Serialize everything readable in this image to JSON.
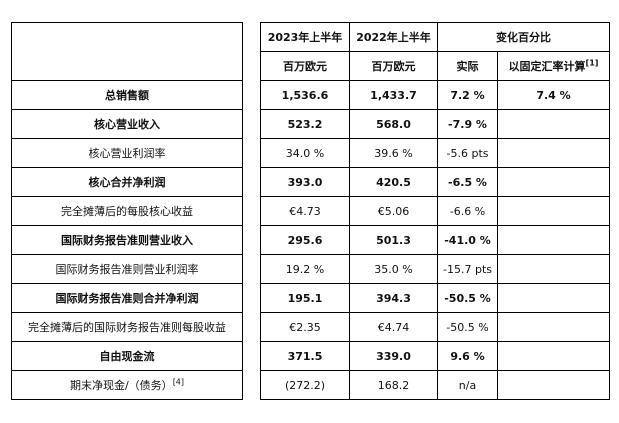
{
  "header": {
    "col1": "2023年上半年",
    "col2": "2022年上半年",
    "change": "变化百分比",
    "unit1": "百万欧元",
    "unit2": "百万欧元",
    "actual": "实际",
    "constant": "以固定汇率计算",
    "constant_note": "[1]"
  },
  "rows": [
    {
      "label": "总销售额",
      "note": "",
      "v2023": "1,536.6",
      "v2022": "1,433.7",
      "actual": "7.2 %",
      "constant": "7.4 %",
      "bold": true
    },
    {
      "label": "核心营业收入",
      "note": "",
      "v2023": "523.2",
      "v2022": "568.0",
      "actual": "-7.9 %",
      "constant": "",
      "bold": true
    },
    {
      "label": "核心营业利润率",
      "note": "",
      "v2023": "34.0 %",
      "v2022": "39.6 %",
      "actual": "-5.6 pts",
      "constant": "",
      "bold": false
    },
    {
      "label": "核心合并净利润",
      "note": "",
      "v2023": "393.0",
      "v2022": "420.5",
      "actual": "-6.5 %",
      "constant": "",
      "bold": true
    },
    {
      "label": "完全摊薄后的每股核心收益",
      "note": "",
      "v2023": "€4.73",
      "v2022": "€5.06",
      "actual": "-6.6 %",
      "constant": "",
      "bold": false
    },
    {
      "label": "国际财务报告准则营业收入",
      "note": "",
      "v2023": "295.6",
      "v2022": "501.3",
      "actual": "-41.0 %",
      "constant": "",
      "bold": true
    },
    {
      "label": "国际财务报告准则营业利润率",
      "note": "",
      "v2023": "19.2 %",
      "v2022": "35.0 %",
      "actual": "-15.7 pts",
      "constant": "",
      "bold": false
    },
    {
      "label": "国际财务报告准则合并净利润",
      "note": "",
      "v2023": "195.1",
      "v2022": "394.3",
      "actual": "-50.5 %",
      "constant": "",
      "bold": true
    },
    {
      "label": "完全摊薄后的国际财务报告准则每股收益",
      "note": "",
      "v2023": "€2.35",
      "v2022": "€4.74",
      "actual": "-50.5 %",
      "constant": "",
      "bold": false
    },
    {
      "label": "自由现金流",
      "note": "",
      "v2023": "371.5",
      "v2022": "339.0",
      "actual": "9.6 %",
      "constant": "",
      "bold": true
    },
    {
      "label": "期末净现金/（债务）",
      "note": "[4]",
      "v2023": "(272.2)",
      "v2022": "168.2",
      "actual": "n/a",
      "constant": "",
      "bold": false
    }
  ]
}
